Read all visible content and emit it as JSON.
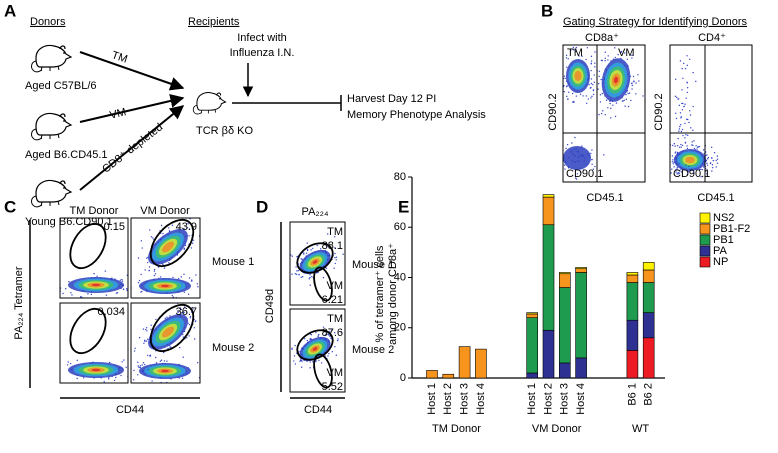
{
  "panel_labels": [
    "A",
    "B",
    "C",
    "D",
    "E"
  ],
  "panel_a": {
    "donors_heading": "Donors",
    "recipients_heading": "Recipients",
    "donors": [
      "Aged C57BL/6",
      "Aged B6.CD45.1",
      "Young B6.CD90.1"
    ],
    "arrow_labels": [
      "TM",
      "VM",
      "CD8⁺ depleted"
    ],
    "recipient": "TCR βδ KO",
    "infection": [
      "Infect with",
      "Influenza I.N."
    ],
    "harvest": [
      "Harvest Day 12 PI",
      "Memory Phenotype Analysis"
    ]
  },
  "panel_b": {
    "title": "Gating Strategy for Identifying Donors",
    "plots": [
      {
        "title": "CD8a⁺",
        "y_axis": "CD90.2",
        "x_axis": "CD45.1",
        "quadrants": [
          "TM",
          "VM",
          "CD90.1"
        ]
      },
      {
        "title": "CD4⁺",
        "y_axis": "CD90.2",
        "x_axis": "CD45.1",
        "quadrants": [
          "CD90.1"
        ]
      }
    ]
  },
  "panel_c": {
    "columns": [
      "TM Donor",
      "VM Donor"
    ],
    "rows": [
      "Mouse 1",
      "Mouse 2"
    ],
    "y_axis": "PA₂₂₄ Tetramer",
    "x_axis": "CD44",
    "gate_values": [
      [
        0.15,
        43.9
      ],
      [
        0.034,
        36.7
      ]
    ]
  },
  "panel_d": {
    "title": "PA₂₂₄",
    "y_axis": "CD49d",
    "x_axis": "CD44",
    "rows": [
      "Mouse 1",
      "Mouse 2"
    ],
    "gates": [
      [
        {
          "label": "TM",
          "value": 88.1
        },
        {
          "label": "VM",
          "value": 6.21
        }
      ],
      [
        {
          "label": "TM",
          "value": 87.6
        },
        {
          "label": "VM",
          "value": 5.52
        }
      ]
    ]
  },
  "chart_data": {
    "type": "stacked_bar",
    "y_label": [
      "% of tetramer⁺ cells",
      "among donor CD8a⁺"
    ],
    "categories": [
      "Host 1",
      "Host 2",
      "Host 3",
      "Host 4",
      "Host 1",
      "Host 2",
      "Host 3",
      "Host 4",
      "B6 1",
      "B6 2"
    ],
    "category_groups": [
      "TM Donor",
      "TM Donor",
      "TM Donor",
      "TM Donor",
      "VM Donor",
      "VM Donor",
      "VM Donor",
      "VM Donor",
      "WT",
      "WT"
    ],
    "series": [
      {
        "name": "NS2",
        "color": "#fff200",
        "values": [
          0,
          0,
          0,
          0,
          0.5,
          1,
          0.5,
          0.5,
          1,
          3
        ]
      },
      {
        "name": "PB1-F2",
        "color": "#f7941d",
        "values": [
          3,
          1.5,
          12.5,
          11.5,
          1.5,
          11,
          5.5,
          1.5,
          3,
          5
        ]
      },
      {
        "name": "PB1",
        "color": "#1e9b4f",
        "values": [
          0,
          0,
          0,
          0,
          22,
          42,
          30,
          34,
          15,
          12
        ]
      },
      {
        "name": "PA",
        "color": "#2e3192",
        "values": [
          0,
          0,
          0,
          0,
          2,
          19,
          6,
          8,
          12,
          10
        ]
      },
      {
        "name": "NP",
        "color": "#ed1c24",
        "values": [
          0,
          0,
          0,
          0,
          0,
          0,
          0,
          0,
          11,
          16
        ]
      }
    ],
    "ylim": [
      0,
      80
    ],
    "yticks": [
      0,
      20,
      40,
      60,
      80
    ],
    "legend": "top-right"
  }
}
